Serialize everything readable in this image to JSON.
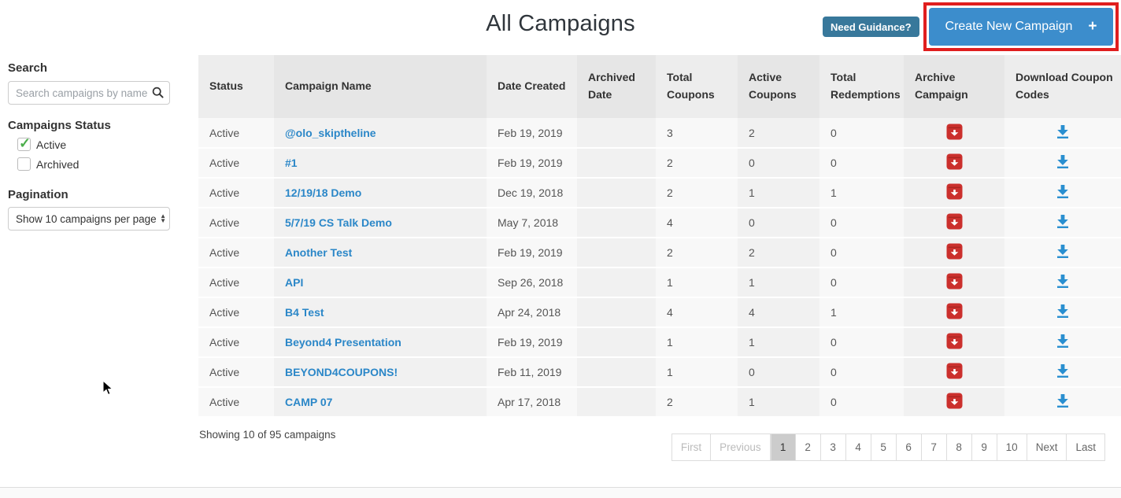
{
  "page": {
    "title": "All Campaigns"
  },
  "header": {
    "need_guidance_label": "Need Guidance?",
    "create_campaign_label": "Create New Campaign",
    "create_campaign_plus": "+",
    "colors": {
      "create_button": "#3c8dcc",
      "guidance_button": "#38789b",
      "highlight_box": "#e01e1e",
      "link_blue": "#2b87c8",
      "archive_red": "#cb302d",
      "download_blue": "#2a8fd0",
      "check_green": "#4cae4c"
    }
  },
  "sidebar": {
    "search": {
      "heading": "Search",
      "placeholder": "Search campaigns by name..."
    },
    "status_filter": {
      "heading": "Campaigns Status",
      "options": [
        {
          "label": "Active",
          "checked": true
        },
        {
          "label": "Archived",
          "checked": false
        }
      ]
    },
    "pagination_setting": {
      "heading": "Pagination",
      "selected": "Show 10 campaigns per page"
    }
  },
  "table": {
    "columns": [
      "Status",
      "Campaign Name",
      "Date Created",
      "Archived Date",
      "Total Coupons",
      "Active Coupons",
      "Total Redemptions",
      "Archive Campaign",
      "Download Coupon Codes"
    ],
    "rows": [
      {
        "status": "Active",
        "name": "@olo_skiptheline",
        "date_created": "Feb 19, 2019",
        "archived_date": "",
        "total_coupons": "3",
        "active_coupons": "2",
        "total_redemptions": "0"
      },
      {
        "status": "Active",
        "name": "#1",
        "date_created": "Feb 19, 2019",
        "archived_date": "",
        "total_coupons": "2",
        "active_coupons": "0",
        "total_redemptions": "0"
      },
      {
        "status": "Active",
        "name": "12/19/18 Demo",
        "date_created": "Dec 19, 2018",
        "archived_date": "",
        "total_coupons": "2",
        "active_coupons": "1",
        "total_redemptions": "1"
      },
      {
        "status": "Active",
        "name": "5/7/19 CS Talk Demo",
        "date_created": "May 7, 2018",
        "archived_date": "",
        "total_coupons": "4",
        "active_coupons": "0",
        "total_redemptions": "0"
      },
      {
        "status": "Active",
        "name": "Another Test",
        "date_created": "Feb 19, 2019",
        "archived_date": "",
        "total_coupons": "2",
        "active_coupons": "2",
        "total_redemptions": "0"
      },
      {
        "status": "Active",
        "name": "API",
        "date_created": "Sep 26, 2018",
        "archived_date": "",
        "total_coupons": "1",
        "active_coupons": "1",
        "total_redemptions": "0"
      },
      {
        "status": "Active",
        "name": "B4 Test",
        "date_created": "Apr 24, 2018",
        "archived_date": "",
        "total_coupons": "4",
        "active_coupons": "4",
        "total_redemptions": "1"
      },
      {
        "status": "Active",
        "name": "Beyond4 Presentation",
        "date_created": "Feb 19, 2019",
        "archived_date": "",
        "total_coupons": "1",
        "active_coupons": "1",
        "total_redemptions": "0"
      },
      {
        "status": "Active",
        "name": "BEYOND4COUPONS!",
        "date_created": "Feb 11, 2019",
        "archived_date": "",
        "total_coupons": "1",
        "active_coupons": "0",
        "total_redemptions": "0"
      },
      {
        "status": "Active",
        "name": "CAMP 07",
        "date_created": "Apr 17, 2018",
        "archived_date": "",
        "total_coupons": "2",
        "active_coupons": "1",
        "total_redemptions": "0"
      }
    ]
  },
  "footer": {
    "summary": "Showing 10 of 95 campaigns",
    "pagination": {
      "first": "First",
      "previous": "Previous",
      "pages": [
        "1",
        "2",
        "3",
        "4",
        "5",
        "6",
        "7",
        "8",
        "9",
        "10"
      ],
      "active_page": "1",
      "next": "Next",
      "last": "Last"
    }
  }
}
